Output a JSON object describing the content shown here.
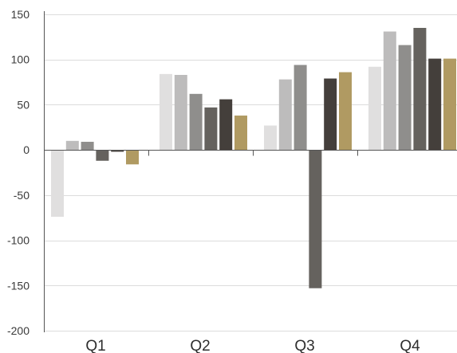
{
  "chart_data": {
    "type": "bar",
    "categories": [
      "Q1",
      "Q2",
      "Q3",
      "Q4"
    ],
    "series": [
      {
        "color": "#e0dfdf",
        "values": [
          -74,
          84,
          27,
          92
        ]
      },
      {
        "color": "#bdbcbc",
        "values": [
          10,
          83,
          78,
          131
        ]
      },
      {
        "color": "#8f8e8c",
        "values": [
          9,
          62,
          94,
          116
        ]
      },
      {
        "color": "#65625e",
        "values": [
          -12,
          47,
          -153,
          135
        ]
      },
      {
        "color": "#443f3b",
        "values": [
          -2,
          56,
          79,
          101
        ]
      },
      {
        "color": "#b09a62",
        "values": [
          -16,
          38,
          86,
          101
        ]
      }
    ],
    "ylim": [
      -200,
      150
    ],
    "yticks": [
      150,
      100,
      50,
      0,
      -50,
      -100,
      -150,
      -200
    ],
    "ytick_labels": [
      "150",
      "100",
      "50",
      "0",
      "-50",
      "-100",
      "-150",
      "-200"
    ],
    "grid": true,
    "title": "",
    "xlabel": "",
    "ylabel": ""
  }
}
